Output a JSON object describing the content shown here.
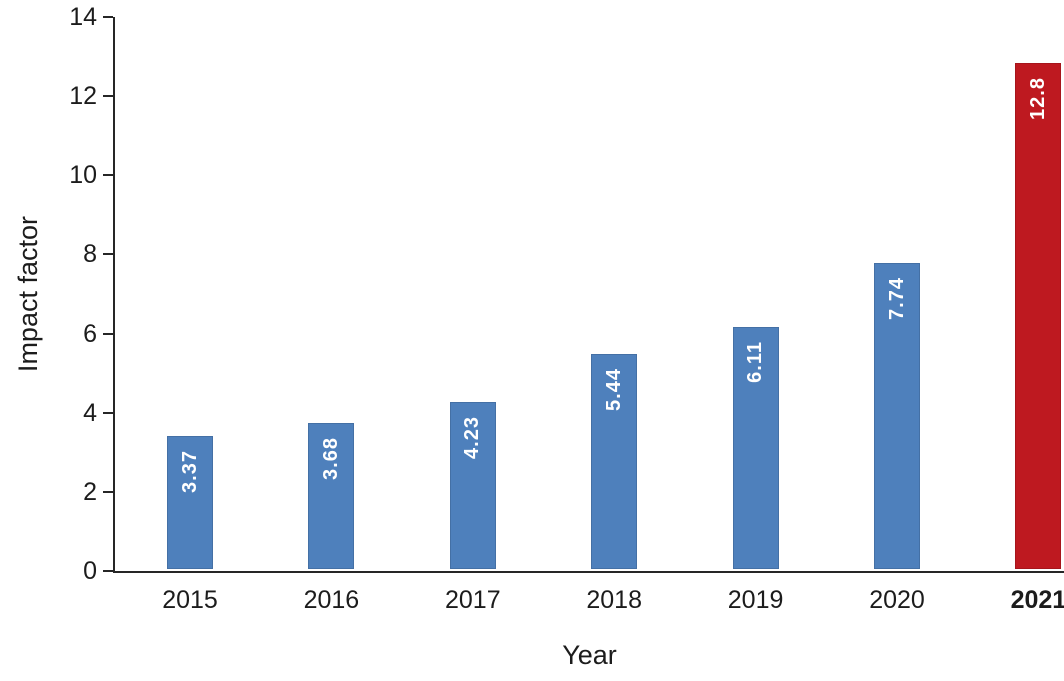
{
  "chart_data": {
    "type": "bar",
    "title": "",
    "categories": [
      "2015",
      "2016",
      "2017",
      "2018",
      "2019",
      "2020",
      "2021"
    ],
    "values": [
      3.37,
      3.68,
      4.23,
      5.44,
      6.11,
      7.74,
      12.8
    ],
    "bar_labels": [
      "3.37",
      "3.68",
      "4.23",
      "5.44",
      "6.11",
      "7.74",
      "12.8"
    ],
    "xlabel": "Year",
    "ylabel": "Impact factor",
    "ylim": [
      0,
      14
    ],
    "yticks": [
      0,
      2,
      4,
      6,
      8,
      10,
      12,
      14
    ],
    "grid": false,
    "legend": "none",
    "bar_label_position": "inside-end-rotated-90ccw",
    "highlight_index": 6,
    "bold_category_index": 6,
    "colors": {
      "bar_default": "#4E80BC",
      "bar_highlight": "#BE1920",
      "bar_label_text": "#FFFFFF",
      "axis_line": "#262626",
      "text": "#1C1C1C"
    }
  }
}
